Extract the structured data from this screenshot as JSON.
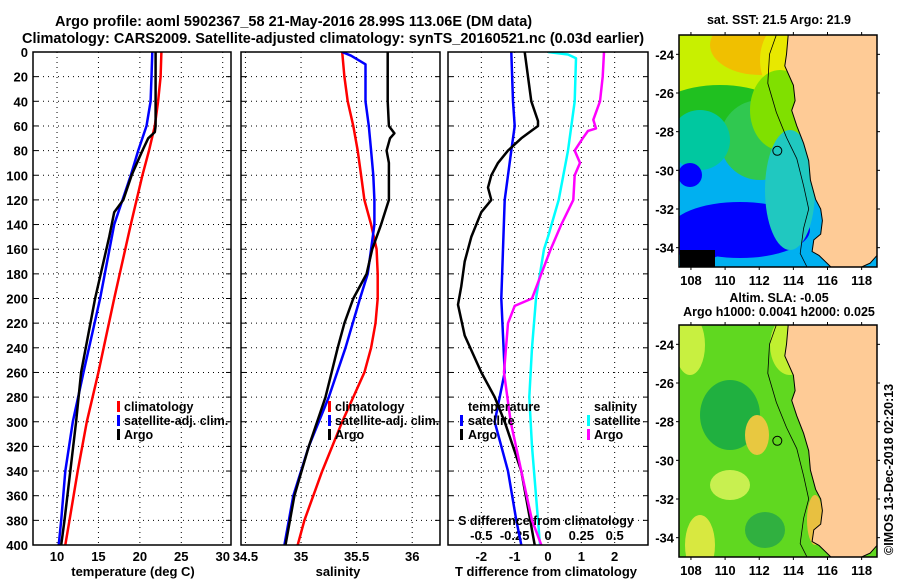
{
  "title": {
    "line1": "Argo profile: aoml 5902367_58 21-May-2016 28.99S 113.06E (DM data)",
    "line2": "Climatology: CARS2009. Satellite-adjusted climatology: synTS_20160521.nc (0.03d earlier)"
  },
  "watermark": "©IMOS 13-Dec-2018 02:20:13",
  "colors": {
    "climatology": "#ff0000",
    "satellite": "#0000ff",
    "argo": "#000000",
    "sal_satellite": "#00ffff",
    "sal_argo": "#ff00ff",
    "land": "#fecb96"
  },
  "chart_data": [
    {
      "type": "line",
      "name": "temperature-profile",
      "xlabel": "temperature (deg C)",
      "ylabel": "",
      "xlim": [
        7.1,
        31.0
      ],
      "ylim": [
        400,
        0
      ],
      "xticks": [
        10,
        15,
        20,
        25,
        30
      ],
      "yticks": [
        0,
        20,
        40,
        60,
        80,
        100,
        120,
        140,
        160,
        180,
        200,
        220,
        240,
        260,
        280,
        300,
        320,
        340,
        360,
        380,
        400
      ],
      "grid": true,
      "legend": {
        "placement": "lower-right",
        "entries": [
          "climatology",
          "satellite-adj. clim.",
          "Argo"
        ]
      },
      "series": [
        {
          "name": "climatology",
          "color": "#ff0000",
          "depth": [
            0,
            20,
            40,
            60,
            80,
            100,
            140,
            200,
            260,
            300,
            340,
            380,
            400
          ],
          "values": [
            22.6,
            22.5,
            22.2,
            21.8,
            21.1,
            20.3,
            18.9,
            16.9,
            15.0,
            13.6,
            12.5,
            11.5,
            11.0
          ]
        },
        {
          "name": "satellite-adj. clim.",
          "color": "#0000ff",
          "depth": [
            0,
            20,
            40,
            60,
            80,
            100,
            140,
            200,
            260,
            300,
            340,
            380,
            400
          ],
          "values": [
            21.5,
            21.4,
            21.3,
            20.8,
            19.8,
            18.9,
            16.9,
            15.2,
            13.2,
            11.9,
            11.0,
            10.5,
            10.2
          ]
        },
        {
          "name": "Argo",
          "color": "#000000",
          "depth": [
            0,
            20,
            40,
            60,
            65,
            70,
            80,
            100,
            120,
            130,
            150,
            200,
            260,
            300,
            340,
            380,
            400
          ],
          "values": [
            21.9,
            21.9,
            21.9,
            21.9,
            21.8,
            21.0,
            20.3,
            19.0,
            18.0,
            16.9,
            16.3,
            14.6,
            12.9,
            12.3,
            11.6,
            10.9,
            10.5
          ]
        }
      ]
    },
    {
      "type": "line",
      "name": "salinity-profile",
      "xlabel": "salinity",
      "ylabel": "",
      "xlim": [
        34.46,
        36.25
      ],
      "ylim": [
        400,
        0
      ],
      "xticks": [
        34.5,
        35,
        35.5,
        36
      ],
      "grid": true,
      "legend": {
        "placement": "lower-center",
        "entries": [
          "climatology",
          "satellite-adj. clim.",
          "Argo"
        ]
      },
      "series": [
        {
          "name": "climatology",
          "color": "#ff0000",
          "depth": [
            0,
            20,
            40,
            60,
            80,
            100,
            120,
            140,
            160,
            180,
            200,
            220,
            240,
            260,
            280,
            300,
            340,
            380,
            400
          ],
          "values": [
            35.37,
            35.39,
            35.42,
            35.47,
            35.51,
            35.54,
            35.57,
            35.63,
            35.68,
            35.69,
            35.69,
            35.67,
            35.63,
            35.57,
            35.47,
            35.37,
            35.19,
            35.03,
            34.97
          ]
        },
        {
          "name": "satellite-adj. clim.",
          "color": "#0000ff",
          "depth": [
            0,
            3,
            10,
            40,
            60,
            80,
            100,
            120,
            140,
            160,
            180,
            200,
            240,
            280,
            320,
            360,
            400
          ],
          "values": [
            35.37,
            35.45,
            35.58,
            35.58,
            35.61,
            35.63,
            35.65,
            35.66,
            35.66,
            35.63,
            35.6,
            35.53,
            35.4,
            35.25,
            35.07,
            34.93,
            34.85
          ]
        },
        {
          "name": "Argo",
          "color": "#000000",
          "depth": [
            0,
            20,
            40,
            60,
            66,
            70,
            80,
            90,
            100,
            120,
            140,
            160,
            180,
            200,
            220,
            240,
            280,
            320,
            360,
            400
          ],
          "values": [
            35.78,
            35.78,
            35.78,
            35.79,
            35.84,
            35.8,
            35.77,
            35.79,
            35.79,
            35.79,
            35.72,
            35.64,
            35.59,
            35.47,
            35.39,
            35.33,
            35.22,
            35.07,
            34.94,
            34.86
          ]
        }
      ]
    },
    {
      "type": "line",
      "name": "difference-profile",
      "xlabel": "T difference from climatology",
      "x2label": "S difference from climatology",
      "xlim": [
        -3,
        3
      ],
      "x2lim": [
        -0.75,
        0.75
      ],
      "ylim": [
        400,
        0
      ],
      "xticks": [
        -2,
        -1,
        0,
        1,
        2
      ],
      "x2ticks": [
        -0.5,
        -0.25,
        0,
        0.25,
        0.5
      ],
      "grid": true,
      "legend": {
        "placement": "lower",
        "temperature_heading": "temperature",
        "salinity_heading": "salinity",
        "entries": [
          "satellite",
          "Argo",
          "satellite",
          "Argo"
        ]
      },
      "series": [
        {
          "name": "temperature satellite",
          "axis": "T",
          "color": "#0000ff",
          "depth": [
            0,
            40,
            60,
            80,
            120,
            200,
            260,
            300,
            340,
            380,
            400
          ],
          "values": [
            -1.1,
            -1.05,
            -1.0,
            -1.1,
            -1.3,
            -1.4,
            -1.3,
            -1.6,
            -1.2,
            -0.95,
            -0.8
          ]
        },
        {
          "name": "temperature Argo",
          "axis": "T",
          "color": "#000000",
          "depth": [
            0,
            20,
            40,
            56,
            60,
            64,
            70,
            80,
            90,
            100,
            110,
            120,
            130,
            150,
            170,
            190,
            205,
            230,
            260,
            280,
            300,
            340,
            370,
            400
          ],
          "values": [
            -0.7,
            -0.6,
            -0.5,
            -0.3,
            -0.3,
            -0.5,
            -0.8,
            -1.2,
            -1.5,
            -1.7,
            -1.8,
            -1.7,
            -2.0,
            -2.3,
            -2.5,
            -2.6,
            -2.7,
            -2.5,
            -2.0,
            -1.6,
            -1.3,
            -0.8,
            -0.6,
            -0.4
          ]
        },
        {
          "name": "salinity satellite",
          "axis": "S",
          "color": "#00ffff",
          "depth": [
            0,
            2,
            5,
            40,
            80,
            120,
            150,
            160,
            200,
            240,
            280,
            320,
            360,
            400
          ],
          "values": [
            0.0,
            0.15,
            0.21,
            0.2,
            0.15,
            0.08,
            0.0,
            -0.03,
            -0.09,
            -0.12,
            -0.14,
            -0.12,
            -0.09,
            -0.06
          ]
        },
        {
          "name": "salinity Argo",
          "axis": "S",
          "color": "#ff00ff",
          "depth": [
            0,
            20,
            40,
            55,
            62,
            64,
            70,
            80,
            90,
            100,
            120,
            140,
            160,
            180,
            200,
            206,
            220,
            260,
            300,
            340,
            380,
            400
          ],
          "values": [
            0.42,
            0.41,
            0.39,
            0.34,
            0.36,
            0.3,
            0.26,
            0.2,
            0.24,
            0.2,
            0.19,
            0.1,
            0.02,
            -0.05,
            -0.12,
            -0.25,
            -0.3,
            -0.33,
            -0.28,
            -0.2,
            -0.12,
            -0.05
          ]
        }
      ]
    },
    {
      "type": "heatmap",
      "name": "sst-map",
      "title": "sat. SST: 21.5 Argo: 21.9",
      "xlim": [
        107.3,
        118.9
      ],
      "ylim": [
        -35.0,
        -23.0
      ],
      "xticks": [
        108,
        110,
        112,
        114,
        116,
        118
      ],
      "yticks": [
        -24,
        -26,
        -28,
        -30,
        -32,
        -34
      ],
      "argo_position": {
        "lon": 113.06,
        "lat": -28.99
      }
    },
    {
      "type": "heatmap",
      "name": "sla-map",
      "title": "Altim. SLA: -0.05",
      "subtitle": "Argo h1000: 0.0041 h2000: 0.025",
      "xlim": [
        107.3,
        118.9
      ],
      "ylim": [
        -35.0,
        -23.0
      ],
      "xticks": [
        108,
        110,
        112,
        114,
        116,
        118
      ],
      "yticks": [
        -24,
        -26,
        -28,
        -30,
        -32,
        -34
      ],
      "argo_position": {
        "lon": 113.06,
        "lat": -28.99
      }
    }
  ]
}
